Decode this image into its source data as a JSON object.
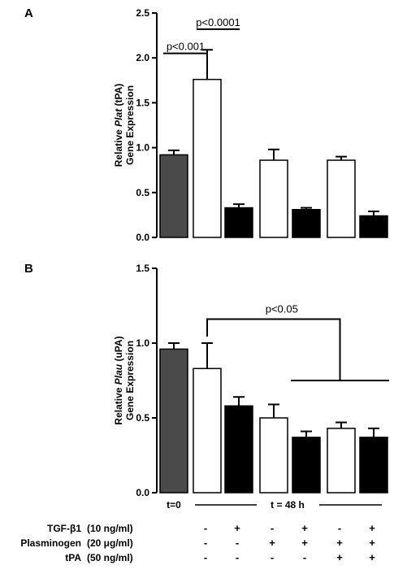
{
  "colors": {
    "t0": "#4a4a4a",
    "open": "#ffffff",
    "filled": "#000000"
  },
  "chart_data": [
    {
      "type": "bar",
      "panel": "A",
      "ylabel_line1": [
        "Relative ",
        "Plat",
        " (tPA)"
      ],
      "ylabel_line2": "Gene Expression",
      "ylim": [
        0,
        2.5
      ],
      "yticks": [
        "0.0",
        "0.5",
        "1.0",
        "1.5",
        "2.0",
        "2.5"
      ],
      "values": [
        0.92,
        1.76,
        0.33,
        0.86,
        0.31,
        0.86,
        0.24
      ],
      "errors": [
        0.05,
        0.33,
        0.04,
        0.12,
        0.02,
        0.04,
        0.05
      ],
      "fills": [
        "t0",
        "open",
        "filled",
        "open",
        "filled",
        "open",
        "filled"
      ],
      "significance": [
        {
          "label": "p<0.001",
          "from": 0,
          "to": 1,
          "y": 2.05
        },
        {
          "label": "p<0.0001",
          "from": 1,
          "to": 2,
          "y": 2.32
        }
      ]
    },
    {
      "type": "bar",
      "panel": "B",
      "ylabel_line1": [
        "Relative ",
        "Plau",
        " (uPA)"
      ],
      "ylabel_line2": "Gene Expression",
      "ylim": [
        0,
        1.5
      ],
      "yticks": [
        "0.0",
        "0.5",
        "1.0",
        "1.5"
      ],
      "values": [
        0.96,
        0.83,
        0.58,
        0.5,
        0.37,
        0.43,
        0.37
      ],
      "errors": [
        0.04,
        0.17,
        0.06,
        0.09,
        0.04,
        0.04,
        0.06
      ],
      "fills": [
        "t0",
        "open",
        "filled",
        "open",
        "filled",
        "open",
        "filled"
      ],
      "significance": [
        {
          "label": "p<0.05",
          "from": 1,
          "to_range": [
            4,
            6
          ],
          "y": 1.16,
          "y_low": 0.75
        }
      ]
    }
  ],
  "time_labels": {
    "t0": "t=0",
    "t48": "t = 48 h"
  },
  "treatments": [
    {
      "name": "TGF-β1",
      "dose": "(10 ng/ml)",
      "signs": [
        "-",
        "+",
        "-",
        "+",
        "-",
        "+"
      ]
    },
    {
      "name": "Plasminogen",
      "dose": "(20 μg/ml)",
      "signs": [
        "-",
        "-",
        "+",
        "+",
        "+",
        "+"
      ]
    },
    {
      "name": "tPA",
      "dose": "(50 ng/ml)",
      "signs": [
        "-",
        "-",
        "-",
        "-",
        "+",
        "+"
      ]
    }
  ]
}
